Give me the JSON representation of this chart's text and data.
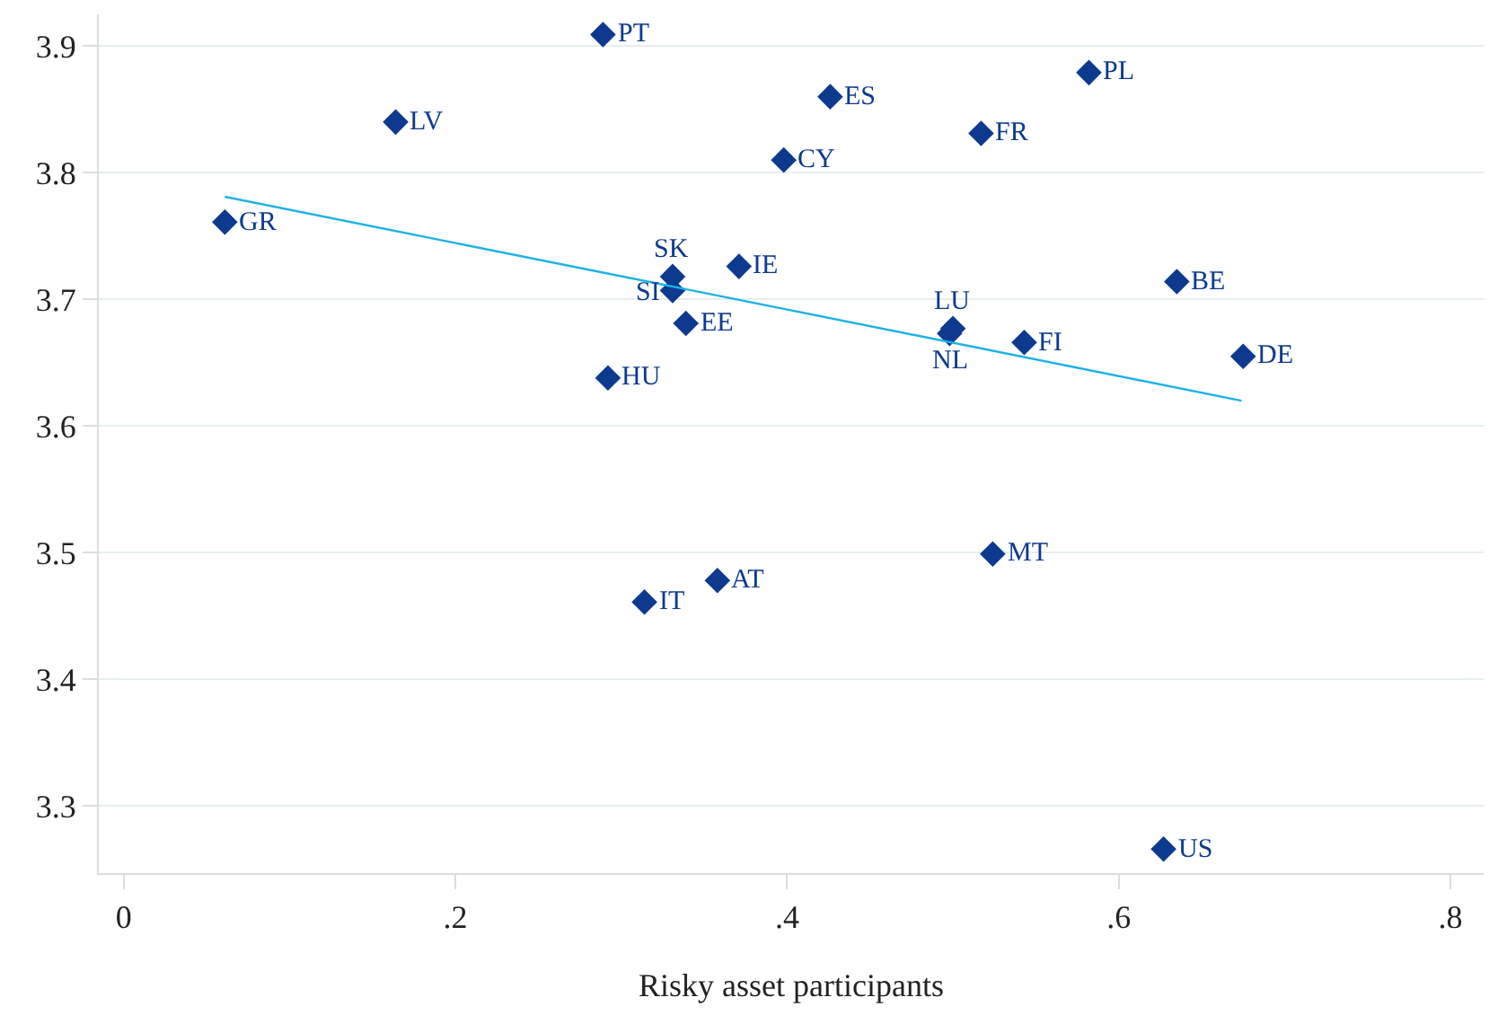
{
  "chart_data": {
    "type": "scatter",
    "xlabel": "Risky asset participants",
    "xlim": [
      -0.015,
      0.82
    ],
    "ylim": [
      3.247,
      3.925
    ],
    "xticks": [
      {
        "value": 0,
        "label": "0"
      },
      {
        "value": 0.2,
        "label": ".2"
      },
      {
        "value": 0.4,
        "label": ".4"
      },
      {
        "value": 0.6,
        "label": ".6"
      },
      {
        "value": 0.8,
        "label": ".8"
      }
    ],
    "yticks": [
      3.3,
      3.4,
      3.5,
      3.6,
      3.7,
      3.8,
      3.9
    ],
    "grid": "y",
    "legend": false,
    "series": [
      {
        "color": "#0d3a8f",
        "marker": "diamond",
        "x": [
          0.289,
          0.164,
          0.061,
          0.426,
          0.582,
          0.517,
          0.398,
          0.331,
          0.331,
          0.371,
          0.339,
          0.292,
          0.5,
          0.498,
          0.543,
          0.635,
          0.675,
          0.524,
          0.358,
          0.314,
          0.627
        ],
        "values": [
          3.909,
          3.84,
          3.761,
          3.86,
          3.879,
          3.831,
          3.81,
          3.718,
          3.707,
          3.726,
          3.681,
          3.638,
          3.677,
          3.673,
          3.666,
          3.714,
          3.655,
          3.499,
          3.478,
          3.461,
          3.266
        ]
      },
      {
        "type": "line",
        "color": "#1ab2e8",
        "x": [
          0.061,
          0.674
        ],
        "values": [
          3.781,
          3.62
        ],
        "line_style": "solid"
      }
    ],
    "annotations": [
      {
        "text": "PT",
        "x": 0.289,
        "y": 3.909
      },
      {
        "text": "LV",
        "x": 0.164,
        "y": 3.84
      },
      {
        "text": "GR",
        "x": 0.061,
        "y": 3.761
      },
      {
        "text": "ES",
        "x": 0.426,
        "y": 3.86
      },
      {
        "text": "PL",
        "x": 0.582,
        "y": 3.879
      },
      {
        "text": "FR",
        "x": 0.517,
        "y": 3.831
      },
      {
        "text": "CY",
        "x": 0.398,
        "y": 3.81
      },
      {
        "text": "SK",
        "x": 0.331,
        "y": 3.718
      },
      {
        "text": "SI",
        "x": 0.331,
        "y": 3.707
      },
      {
        "text": "IE",
        "x": 0.371,
        "y": 3.726
      },
      {
        "text": "EE",
        "x": 0.339,
        "y": 3.681
      },
      {
        "text": "HU",
        "x": 0.292,
        "y": 3.638
      },
      {
        "text": "LU",
        "x": 0.5,
        "y": 3.677
      },
      {
        "text": "NL",
        "x": 0.498,
        "y": 3.673
      },
      {
        "text": "FI",
        "x": 0.543,
        "y": 3.666
      },
      {
        "text": "BE",
        "x": 0.635,
        "y": 3.714
      },
      {
        "text": "DE",
        "x": 0.675,
        "y": 3.655
      },
      {
        "text": "MT",
        "x": 0.524,
        "y": 3.499
      },
      {
        "text": "AT",
        "x": 0.358,
        "y": 3.478
      },
      {
        "text": "IT",
        "x": 0.314,
        "y": 3.461
      },
      {
        "text": "US",
        "x": 0.627,
        "y": 3.266
      }
    ]
  }
}
